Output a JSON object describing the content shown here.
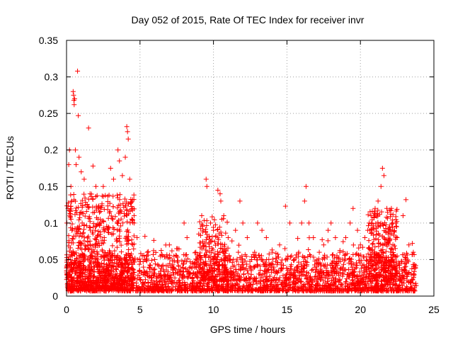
{
  "chart_data": {
    "type": "scatter",
    "title": "Day 052 of 2015, Rate Of TEC Index for receiver invr",
    "xlabel": "GPS time / hours",
    "ylabel": "ROTI / TECUs",
    "xlim": [
      0,
      25
    ],
    "ylim": [
      0,
      0.35
    ],
    "x_ticks": [
      0,
      5,
      10,
      15,
      20,
      25
    ],
    "x_tick_labels": [
      "0",
      "5",
      "10",
      "15",
      "20",
      "25"
    ],
    "y_ticks": [
      0,
      0.05,
      0.1,
      0.15,
      0.2,
      0.25,
      0.3,
      0.35
    ],
    "y_tick_labels": [
      "0",
      "0.05",
      "0.1",
      "0.15",
      "0.2",
      "0.25",
      "0.3",
      "0.35"
    ],
    "grid": true,
    "marker": "+",
    "color": "#ff0000",
    "series": [
      {
        "name": "ROTI",
        "points": [
          [
            0.1,
            0.12
          ],
          [
            0.15,
            0.18
          ],
          [
            0.2,
            0.2
          ],
          [
            0.3,
            0.15
          ],
          [
            0.35,
            0.13
          ],
          [
            0.45,
            0.28
          ],
          [
            0.48,
            0.275
          ],
          [
            0.5,
            0.268
          ],
          [
            0.52,
            0.262
          ],
          [
            0.55,
            0.27
          ],
          [
            0.6,
            0.2
          ],
          [
            0.65,
            0.18
          ],
          [
            0.75,
            0.308
          ],
          [
            0.8,
            0.247
          ],
          [
            0.85,
            0.19
          ],
          [
            1.0,
            0.17
          ],
          [
            1.2,
            0.16
          ],
          [
            1.5,
            0.23
          ],
          [
            1.6,
            0.14
          ],
          [
            1.8,
            0.178
          ],
          [
            2.0,
            0.15
          ],
          [
            2.2,
            0.12
          ],
          [
            2.5,
            0.15
          ],
          [
            3.0,
            0.175
          ],
          [
            3.2,
            0.16
          ],
          [
            3.5,
            0.2
          ],
          [
            3.6,
            0.185
          ],
          [
            3.8,
            0.165
          ],
          [
            4.0,
            0.19
          ],
          [
            4.1,
            0.232
          ],
          [
            4.15,
            0.225
          ],
          [
            4.2,
            0.215
          ],
          [
            4.3,
            0.16
          ],
          [
            4.5,
            0.12
          ],
          [
            4.6,
            0.1
          ],
          [
            4.8,
            0.08
          ],
          [
            5.5,
            0.06
          ],
          [
            6.0,
            0.05
          ],
          [
            6.5,
            0.055
          ],
          [
            7.0,
            0.07
          ],
          [
            7.5,
            0.065
          ],
          [
            8.0,
            0.1
          ],
          [
            8.2,
            0.08
          ],
          [
            8.8,
            0.06
          ],
          [
            9.0,
            0.085
          ],
          [
            9.2,
            0.11
          ],
          [
            9.5,
            0.16
          ],
          [
            9.55,
            0.15
          ],
          [
            9.8,
            0.1
          ],
          [
            10.0,
            0.09
          ],
          [
            10.3,
            0.145
          ],
          [
            10.45,
            0.14
          ],
          [
            10.5,
            0.13
          ],
          [
            10.7,
            0.11
          ],
          [
            11.0,
            0.08
          ],
          [
            11.5,
            0.09
          ],
          [
            11.8,
            0.13
          ],
          [
            12.0,
            0.1
          ],
          [
            12.3,
            0.08
          ],
          [
            12.8,
            0.06
          ],
          [
            13.0,
            0.1
          ],
          [
            13.3,
            0.09
          ],
          [
            13.6,
            0.08
          ],
          [
            14.0,
            0.06
          ],
          [
            14.5,
            0.07
          ],
          [
            14.9,
            0.123
          ],
          [
            15.2,
            0.1
          ],
          [
            15.5,
            0.05
          ],
          [
            15.8,
            0.06
          ],
          [
            16.0,
            0.1
          ],
          [
            16.2,
            0.13
          ],
          [
            16.3,
            0.15
          ],
          [
            16.5,
            0.1
          ],
          [
            16.8,
            0.08
          ],
          [
            17.2,
            0.06
          ],
          [
            17.5,
            0.07
          ],
          [
            17.8,
            0.09
          ],
          [
            18.0,
            0.1
          ],
          [
            18.3,
            0.08
          ],
          [
            18.6,
            0.06
          ],
          [
            19.0,
            0.08
          ],
          [
            19.3,
            0.1
          ],
          [
            19.5,
            0.12
          ],
          [
            19.8,
            0.09
          ],
          [
            20.0,
            0.07
          ],
          [
            20.3,
            0.08
          ],
          [
            20.5,
            0.09
          ],
          [
            20.8,
            0.1
          ],
          [
            21.0,
            0.12
          ],
          [
            21.2,
            0.13
          ],
          [
            21.4,
            0.15
          ],
          [
            21.5,
            0.175
          ],
          [
            21.6,
            0.165
          ],
          [
            21.8,
            0.12
          ],
          [
            22.0,
            0.09
          ],
          [
            22.2,
            0.1
          ],
          [
            22.5,
            0.08
          ],
          [
            22.9,
            0.11
          ],
          [
            23.1,
            0.132
          ],
          [
            23.3,
            0.07
          ],
          [
            23.6,
            0.06
          ]
        ]
      }
    ]
  }
}
